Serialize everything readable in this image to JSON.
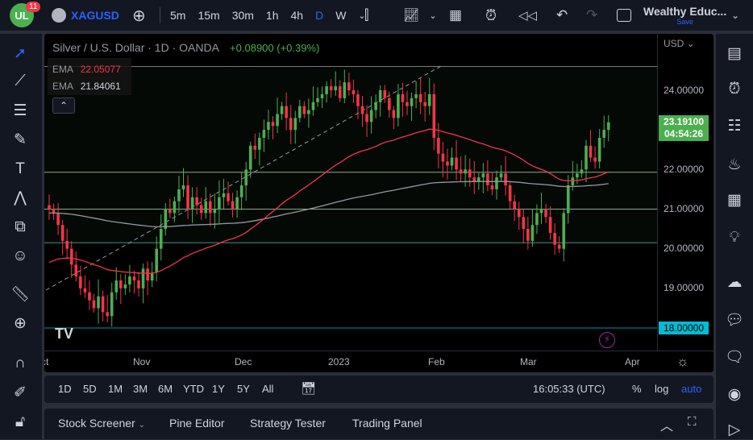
{
  "topbar": {
    "badge": "11",
    "symbol": "XAGUSD",
    "intervals": [
      "5m",
      "15m",
      "30m",
      "1h",
      "4h",
      "D",
      "W"
    ],
    "active_interval": "D",
    "layout_name": "Wealthy Educ...",
    "save_label": "Save"
  },
  "legend": {
    "title": "Silver / U.S. Dollar · 1D · OANDA",
    "change": "+0.08900 (+0.39%)",
    "ema1_label": "EMA",
    "ema1_value": "22.05077",
    "ema2_label": "EMA",
    "ema2_value": "21.84061"
  },
  "price_axis": {
    "currency": "USD",
    "labels": [
      "24.00000",
      "22.00000",
      "21.00000",
      "20.00000",
      "19.00000"
    ],
    "current_price": "23.19100",
    "countdown": "04:54:26",
    "marked_level": "18.00000"
  },
  "time_axis": [
    "ct",
    "Nov",
    "Dec",
    "2023",
    "Feb",
    "Mar",
    "Apr"
  ],
  "range_bar": {
    "ranges": [
      "1D",
      "5D",
      "1M",
      "3M",
      "6M",
      "YTD",
      "1Y",
      "5Y",
      "All"
    ],
    "clock": "16:05:33 (UTC)",
    "percent": "%",
    "log": "log",
    "auto": "auto"
  },
  "bottom_panel": {
    "tabs": [
      "Stock Screener",
      "Pine Editor",
      "Strategy Tester",
      "Trading Panel"
    ]
  },
  "colors": {
    "up": "#26a69a",
    "up_candle": "#4caf50",
    "down": "#ef5350",
    "accent": "#2962ff",
    "ema_red": "#f23645",
    "ema_gray": "#9598a1"
  },
  "chart_data": {
    "type": "candlestick",
    "ylim": [
      17.45,
      25.4
    ],
    "levels": [
      24.6,
      21.93,
      21.0,
      20.15,
      18.0
    ],
    "closes": [
      21.0,
      20.9,
      20.6,
      20.2,
      20.0,
      19.6,
      19.3,
      19.0,
      18.9,
      18.7,
      18.5,
      18.8,
      18.4,
      18.3,
      18.9,
      19.2,
      19.0,
      19.1,
      19.3,
      19.2,
      19.0,
      19.5,
      19.2,
      19.4,
      20.0,
      20.5,
      21.0,
      20.9,
      21.2,
      21.5,
      21.6,
      21.0,
      21.3,
      21.1,
      20.9,
      21.2,
      20.9,
      21.0,
      21.3,
      21.4,
      21.2,
      21.0,
      21.3,
      21.6,
      22.0,
      22.6,
      22.5,
      22.8,
      23.0,
      23.2,
      23.1,
      23.4,
      23.6,
      23.3,
      23.0,
      23.3,
      23.6,
      23.4,
      23.5,
      23.7,
      23.8,
      23.9,
      24.1,
      24.0,
      24.1,
      23.8,
      24.2,
      24.0,
      23.9,
      23.6,
      23.4,
      23.2,
      23.5,
      23.7,
      24.0,
      23.8,
      23.5,
      23.3,
      23.9,
      23.7,
      23.6,
      23.8,
      23.9,
      23.7,
      23.6,
      23.9,
      22.8,
      22.4,
      22.2,
      22.1,
      22.3,
      22.0,
      21.9,
      22.0,
      21.8,
      21.7,
      21.8,
      21.9,
      21.6,
      21.5,
      21.8,
      21.9,
      21.6,
      21.2,
      21.0,
      20.8,
      20.5,
      20.2,
      20.6,
      20.9,
      21.0,
      20.8,
      20.4,
      20.1,
      20.0,
      20.9,
      21.6,
      21.8,
      21.9,
      22.0,
      22.6,
      22.3,
      22.2,
      22.8,
      23.0,
      23.19
    ]
  }
}
